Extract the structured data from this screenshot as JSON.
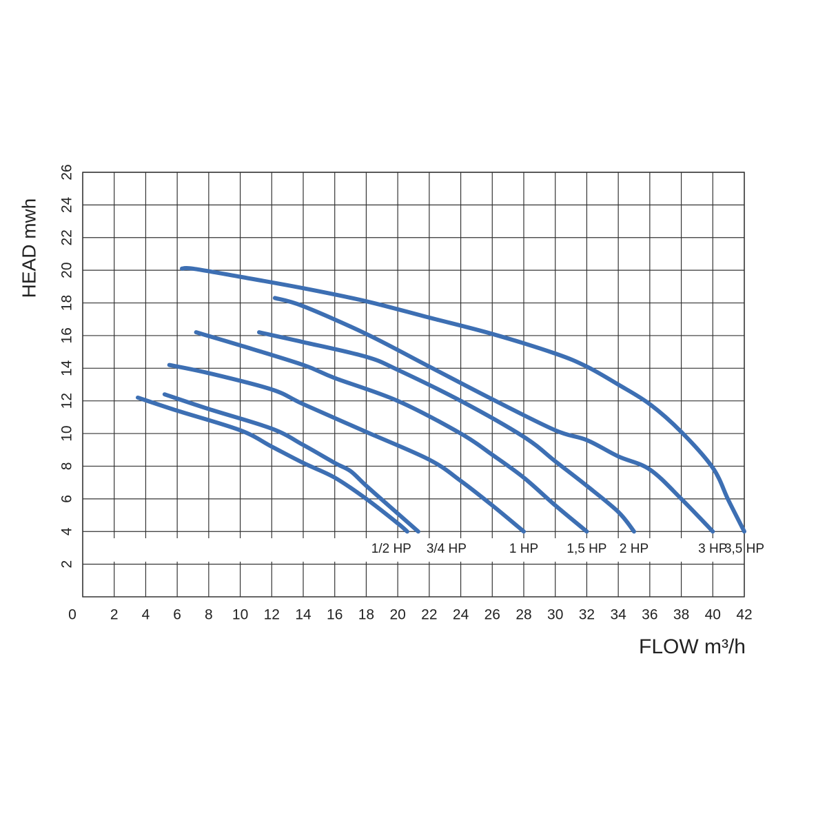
{
  "chart_data": {
    "type": "line",
    "y_label": "HEAD mwh",
    "x_label": "FLOW  m³/h",
    "xlim": [
      0,
      42
    ],
    "ylim": [
      0,
      26
    ],
    "xticks": [
      0,
      2,
      4,
      6,
      8,
      10,
      12,
      14,
      16,
      18,
      20,
      22,
      24,
      26,
      28,
      30,
      32,
      34,
      36,
      38,
      40,
      42
    ],
    "yticks": [
      2,
      4,
      6,
      8,
      10,
      12,
      14,
      16,
      18,
      20,
      22,
      24,
      26
    ],
    "grid": true,
    "series": [
      {
        "name": "1/2 HP",
        "color": "#3d6fb3",
        "x": [
          3.5,
          6,
          10,
          12,
          14,
          16,
          18,
          20,
          20.6
        ],
        "values": [
          12.2,
          11.4,
          10.2,
          9.2,
          8.2,
          7.3,
          6,
          4.5,
          4
        ]
      },
      {
        "name": "3/4 HP",
        "color": "#3d6fb3",
        "x": [
          5.2,
          8,
          12,
          14,
          16,
          17,
          18,
          20,
          21.3
        ],
        "values": [
          12.4,
          11.5,
          10.3,
          9.3,
          8.2,
          7.7,
          6.8,
          5.1,
          4
        ]
      },
      {
        "name": "1 HP",
        "color": "#3d6fb3",
        "x": [
          5.5,
          8,
          12,
          14,
          18,
          22,
          24,
          26,
          28
        ],
        "values": [
          14.2,
          13.7,
          12.7,
          11.8,
          10.1,
          8.4,
          7.1,
          5.6,
          4
        ]
      },
      {
        "name": "1,5 HP",
        "color": "#3d6fb3",
        "x": [
          7.2,
          10,
          14,
          16,
          20,
          24,
          26,
          28,
          30,
          32
        ],
        "values": [
          16.2,
          15.4,
          14.2,
          13.4,
          12,
          10,
          8.7,
          7.3,
          5.6,
          4
        ]
      },
      {
        "name": "2 HP",
        "color": "#3d6fb3",
        "x": [
          11.2,
          14,
          18,
          20,
          24,
          28,
          30,
          32,
          34,
          35
        ],
        "values": [
          16.2,
          15.6,
          14.7,
          13.9,
          12,
          9.8,
          8.3,
          6.8,
          5.2,
          4
        ]
      },
      {
        "name": "3 HP",
        "color": "#3d6fb3",
        "x": [
          12.2,
          14,
          18,
          22,
          26,
          30,
          32,
          34,
          36,
          38,
          40
        ],
        "values": [
          18.3,
          17.8,
          16.1,
          14.1,
          12.1,
          10.2,
          9.6,
          8.6,
          7.8,
          6,
          4
        ]
      },
      {
        "name": "3,5 HP",
        "color": "#3d6fb3",
        "x": [
          6.3,
          7,
          10,
          14,
          18,
          22,
          26,
          30,
          32,
          34,
          36,
          38,
          40,
          41,
          42
        ],
        "values": [
          20.1,
          20.1,
          19.6,
          18.9,
          18.1,
          17.1,
          16.1,
          14.9,
          14.1,
          13,
          11.8,
          10.1,
          7.9,
          5.9,
          4
        ]
      }
    ]
  }
}
